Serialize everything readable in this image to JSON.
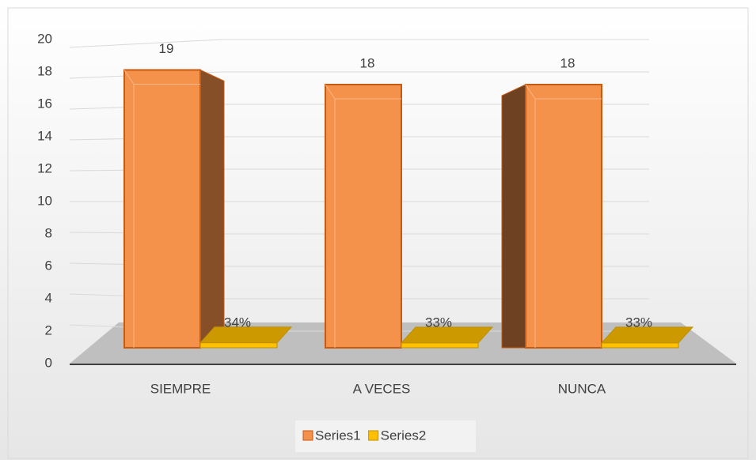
{
  "chart_data": {
    "type": "bar3d",
    "categories": [
      "SIEMPRE",
      "A VECES",
      "NUNCA"
    ],
    "series": [
      {
        "name": "Series1",
        "color": "#f4914a",
        "values": [
          19,
          18,
          18
        ]
      },
      {
        "name": "Series2",
        "color": "#ffc000",
        "values": [
          0.34,
          0.33,
          0.33
        ],
        "value_labels": [
          "34%",
          "33%",
          "33%"
        ]
      }
    ],
    "ylim": [
      0,
      20
    ],
    "yticks": [
      0,
      2,
      4,
      6,
      8,
      10,
      12,
      14,
      16,
      18,
      20
    ],
    "grid": true,
    "legend": "bottom"
  }
}
